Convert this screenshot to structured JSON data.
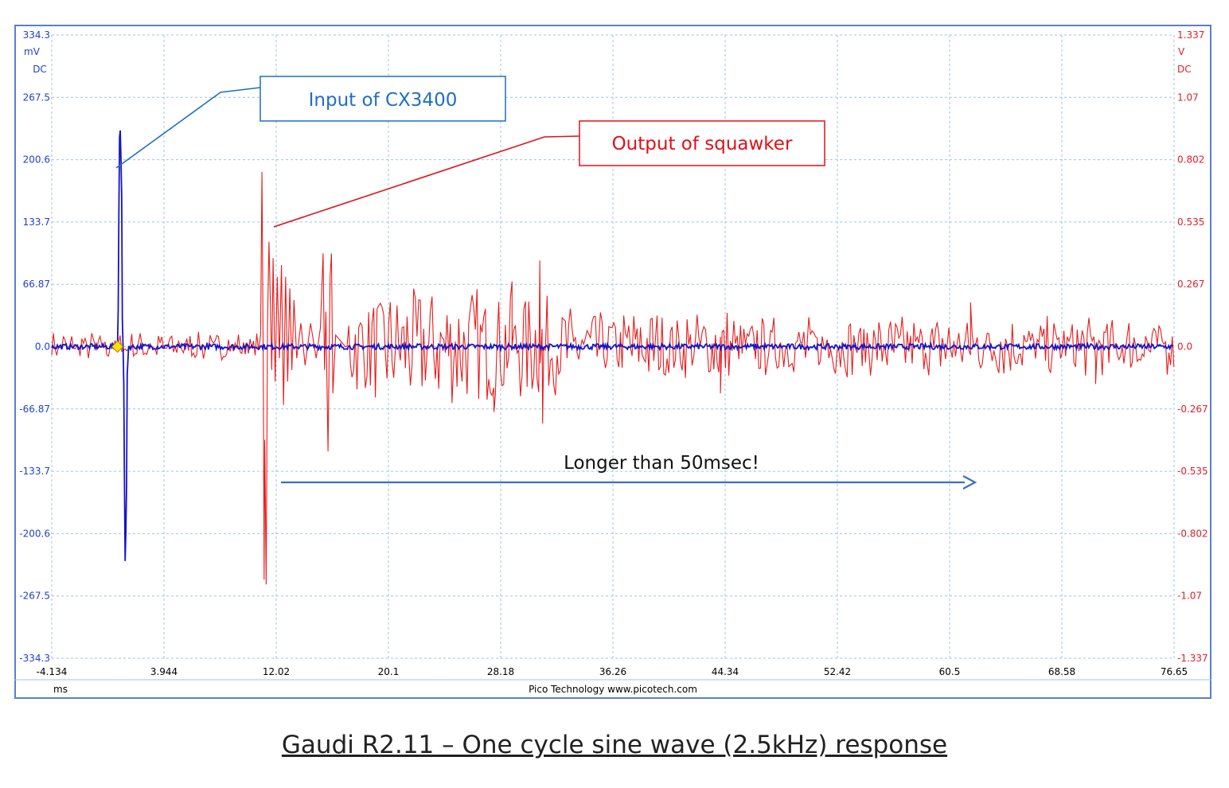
{
  "caption": "Gaudi R2.11 – One cycle sine wave (2.5kHz) response",
  "chart_data": {
    "type": "line",
    "x_unit": "ms",
    "xlim": [
      -4.134,
      76.65
    ],
    "x_ticks": [
      "-4.134",
      "3.944",
      "12.02",
      "20.1",
      "28.18",
      "36.26",
      "44.34",
      "52.42",
      "60.5",
      "68.58",
      "76.65"
    ],
    "left_axis": {
      "unit_lines": [
        "mV",
        "DC"
      ],
      "ylim": [
        -334.3,
        334.3
      ],
      "ticks": [
        "334.3",
        "267.5",
        "200.6",
        "133.7",
        "66.87",
        "0.0",
        "-66.87",
        "-133.7",
        "-200.6",
        "-267.5",
        "-334.3"
      ],
      "color": "#1f3fd0"
    },
    "right_axis": {
      "unit_lines": [
        "V",
        "DC"
      ],
      "ylim": [
        -1.337,
        1.337
      ],
      "ticks": [
        "1.337",
        "1.07",
        "0.802",
        "0.535",
        "0.267",
        "0.0",
        "-0.267",
        "-0.535",
        "-0.802",
        "-1.07",
        "-1.337"
      ],
      "color": "#e0202a"
    },
    "footer": "Pico Technology   www.picotech.com",
    "series": [
      {
        "axis": "left",
        "color": "#1414c8",
        "points": [
          [
            -4.134,
            0
          ],
          [
            0.6,
            0
          ],
          [
            0.65,
            40
          ],
          [
            0.7,
            150
          ],
          [
            0.75,
            225
          ],
          [
            0.8,
            232
          ],
          [
            0.85,
            200
          ],
          [
            0.9,
            160
          ],
          [
            0.95,
            30
          ],
          [
            1.0,
            0
          ],
          [
            1.05,
            -40
          ],
          [
            1.1,
            -150
          ],
          [
            1.15,
            -230
          ],
          [
            1.2,
            -200
          ],
          [
            1.25,
            -150
          ],
          [
            1.3,
            -30
          ],
          [
            1.4,
            0
          ],
          [
            76.65,
            0
          ]
        ]
      },
      {
        "axis": "right",
        "color": "#e81c1c",
        "points": [
          [
            10.9,
            0.05
          ],
          [
            11.0,
            0.75
          ],
          [
            11.05,
            0.3
          ],
          [
            11.1,
            -0.2
          ],
          [
            11.15,
            -1.0
          ],
          [
            11.2,
            -0.4
          ],
          [
            11.3,
            -1.02
          ],
          [
            11.4,
            0.1
          ],
          [
            11.5,
            0.45
          ],
          [
            11.6,
            0.2
          ],
          [
            11.7,
            -0.1
          ],
          [
            11.8,
            0.38
          ],
          [
            11.95,
            -0.15
          ],
          [
            12.1,
            0.3
          ],
          [
            12.25,
            -0.05
          ],
          [
            12.4,
            0.35
          ],
          [
            12.55,
            -0.25
          ],
          [
            12.7,
            0.3
          ],
          [
            12.85,
            -0.15
          ],
          [
            13.0,
            0.25
          ],
          [
            13.15,
            -0.1
          ],
          [
            13.3,
            0.2
          ],
          [
            13.5,
            -0.05
          ],
          [
            13.8,
            0.1
          ],
          [
            14.1,
            -0.08
          ],
          [
            14.5,
            0.1
          ],
          [
            14.9,
            -0.05
          ],
          [
            15.2,
            0.08
          ],
          [
            15.4,
            0.4
          ],
          [
            15.5,
            -0.1
          ],
          [
            15.6,
            0.15
          ],
          [
            15.75,
            -0.45
          ],
          [
            15.9,
            0.3
          ],
          [
            16.0,
            0.4
          ],
          [
            16.1,
            -0.2
          ],
          [
            16.3,
            0.05
          ],
          [
            17.0,
            0.0
          ]
        ]
      }
    ],
    "markers": [
      {
        "x": 0.6,
        "y": 0,
        "shape": "diamond",
        "color": "#ffe000"
      }
    ],
    "annotations": [
      {
        "text": "Input of CX3400",
        "color": "#1f6fc0"
      },
      {
        "text": "Output of squawker",
        "color": "#e0101a"
      },
      {
        "text": "Longer than 50msec!",
        "color": "#111111"
      }
    ]
  }
}
